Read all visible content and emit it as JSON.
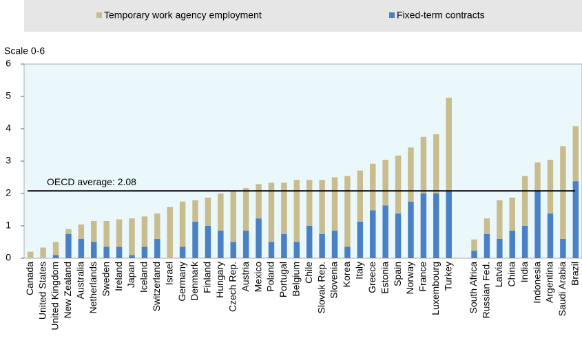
{
  "chart_data": {
    "type": "bar",
    "stacked": true,
    "y_label": "Scale 0-6",
    "categories": [
      "Canada",
      "United States",
      "United Kingdom",
      "New Zealand",
      "Australia",
      "Netherlands",
      "Sweden",
      "Ireland",
      "Japan",
      "Iceland",
      "Switzerland",
      "Israel",
      "Germany",
      "Denmark",
      "Finland",
      "Hungary",
      "Czech Rep.",
      "Austria",
      "Mexico",
      "Poland",
      "Portugal",
      "Belgium",
      "Chile",
      "Slovak Rep.",
      "Slovenia",
      "Korea",
      "Italy",
      "Greece",
      "Estonia",
      "Spain",
      "Norway",
      "France",
      "Luxembourg",
      "Turkey",
      null,
      "South Africa",
      "Russian Fed.",
      "Latvia",
      "China",
      "India",
      "Indonesia",
      "Argentina",
      "Saudi Arabia",
      "Brazil"
    ],
    "series": [
      {
        "name": "Temporary work agency employment",
        "color": "#c9bc8e",
        "values": [
          0.2,
          0.33,
          0.4,
          0.15,
          0.44,
          0.65,
          0.8,
          0.85,
          1.13,
          0.94,
          0.78,
          1.58,
          1.4,
          0.66,
          0.87,
          1.15,
          1.58,
          1.32,
          1.06,
          1.83,
          1.58,
          1.92,
          1.42,
          1.67,
          1.65,
          2.19,
          1.58,
          1.44,
          1.41,
          1.79,
          1.67,
          1.75,
          1.83,
          2.88,
          null,
          0.35,
          0.48,
          1.19,
          1.02,
          1.54,
          0.88,
          1.66,
          2.86,
          1.7
        ]
      },
      {
        "name": "Fixed-term contracts",
        "color": "#4a80c4",
        "values": [
          0,
          0,
          0.1,
          0.75,
          0.6,
          0.5,
          0.35,
          0.35,
          0.1,
          0.35,
          0.6,
          0,
          0.35,
          1.13,
          1.0,
          0.85,
          0.5,
          0.85,
          1.23,
          0.5,
          0.75,
          0.5,
          1.0,
          0.75,
          0.85,
          0.35,
          1.13,
          1.48,
          1.63,
          1.38,
          1.75,
          2.0,
          2.0,
          2.08,
          null,
          0.23,
          0.75,
          0.6,
          0.85,
          1.0,
          2.08,
          1.38,
          0.6,
          2.38
        ]
      }
    ],
    "reference_line": {
      "value": 2.08,
      "label": "OECD average: 2.08"
    },
    "ylim": [
      0,
      6
    ],
    "yticks": [
      0,
      1,
      2,
      3,
      4,
      5,
      6
    ],
    "plot_background": "#eaf8fc"
  }
}
